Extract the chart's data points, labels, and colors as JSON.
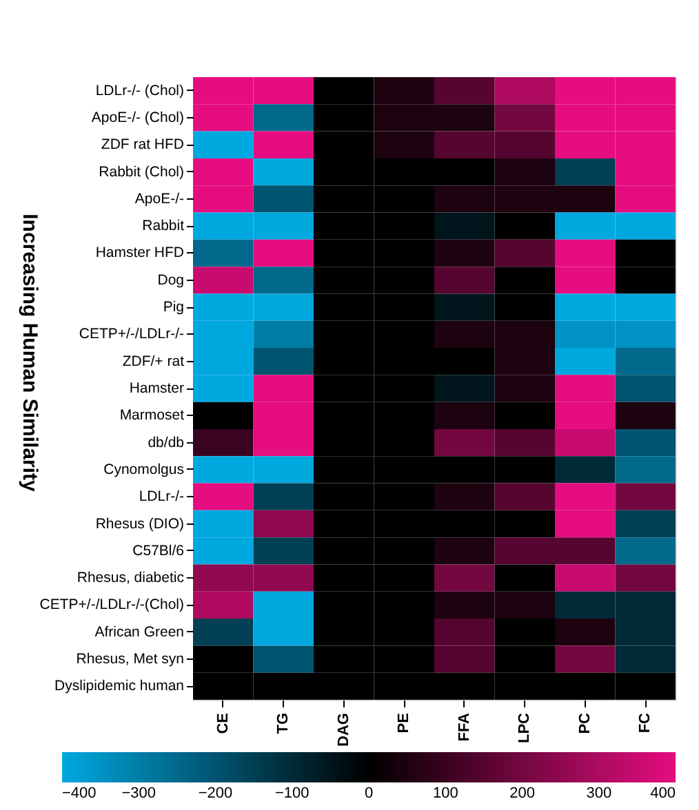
{
  "chart_data": {
    "type": "heatmap",
    "annotations": [
      "Increasing Human Similarity"
    ],
    "categories": [
      "CE",
      "TG",
      "DAG",
      "PE",
      "FFA",
      "LPC",
      "PC",
      "FC"
    ],
    "y_categories": [
      "LDLr-/- (Chol)",
      "ApoE-/- (Chol)",
      "ZDF rat HFD",
      "Rabbit (Chol)",
      "ApoE-/-",
      "Rabbit",
      "Hamster HFD",
      "Dog",
      "Pig",
      "CETP+/-/LDLr-/-",
      "ZDF/+ rat",
      "Hamster",
      "Marmoset",
      "db/db",
      "Cynomolgus",
      "LDLr-/-",
      "Rhesus (DIO)",
      "C57Bl/6",
      "Rhesus, diabetic",
      "CETP+/-/LDLr-/-(Chol)",
      "African Green",
      "Rhesus, Met syn",
      "Dyslipidemic human"
    ],
    "cells": [
      [
        400,
        400,
        0,
        50,
        150,
        300,
        400,
        400
      ],
      [
        400,
        -250,
        0,
        50,
        50,
        200,
        400,
        400
      ],
      [
        -400,
        400,
        0,
        50,
        150,
        150,
        400,
        400
      ],
      [
        400,
        -400,
        0,
        0,
        0,
        50,
        -150,
        400
      ],
      [
        400,
        -200,
        0,
        0,
        50,
        50,
        50,
        400
      ],
      [
        -400,
        -400,
        0,
        0,
        -50,
        0,
        -400,
        -400
      ],
      [
        -250,
        400,
        0,
        0,
        50,
        150,
        400,
        0
      ],
      [
        350,
        -250,
        0,
        0,
        150,
        0,
        400,
        0
      ],
      [
        -400,
        -400,
        0,
        0,
        -50,
        0,
        -400,
        -400
      ],
      [
        -400,
        -300,
        0,
        0,
        50,
        50,
        -350,
        -350
      ],
      [
        -400,
        -200,
        0,
        0,
        0,
        50,
        -400,
        -250
      ],
      [
        -400,
        400,
        0,
        0,
        -50,
        50,
        400,
        -200
      ],
      [
        0,
        400,
        0,
        0,
        50,
        0,
        400,
        50
      ],
      [
        100,
        400,
        0,
        0,
        200,
        150,
        350,
        -200
      ],
      [
        -400,
        -400,
        0,
        0,
        0,
        0,
        -100,
        -250
      ],
      [
        400,
        -150,
        0,
        0,
        50,
        150,
        400,
        200
      ],
      [
        -400,
        250,
        0,
        0,
        0,
        0,
        400,
        -150
      ],
      [
        -400,
        -150,
        0,
        0,
        50,
        150,
        150,
        -250
      ],
      [
        250,
        250,
        0,
        0,
        200,
        0,
        350,
        200
      ],
      [
        300,
        -400,
        0,
        0,
        50,
        50,
        -100,
        -100
      ],
      [
        -150,
        -400,
        0,
        0,
        150,
        0,
        50,
        -100
      ],
      [
        0,
        -200,
        0,
        0,
        150,
        0,
        200,
        -100
      ],
      [
        0,
        0,
        0,
        0,
        0,
        0,
        0,
        0
      ]
    ],
    "clim": [
      -400,
      400
    ],
    "cticks": [
      -400,
      -300,
      -200,
      -100,
      0,
      100,
      200,
      300,
      400
    ],
    "colors": [
      "#00a8e0",
      "#000000",
      "#e60d80"
    ],
    "grid": false
  }
}
